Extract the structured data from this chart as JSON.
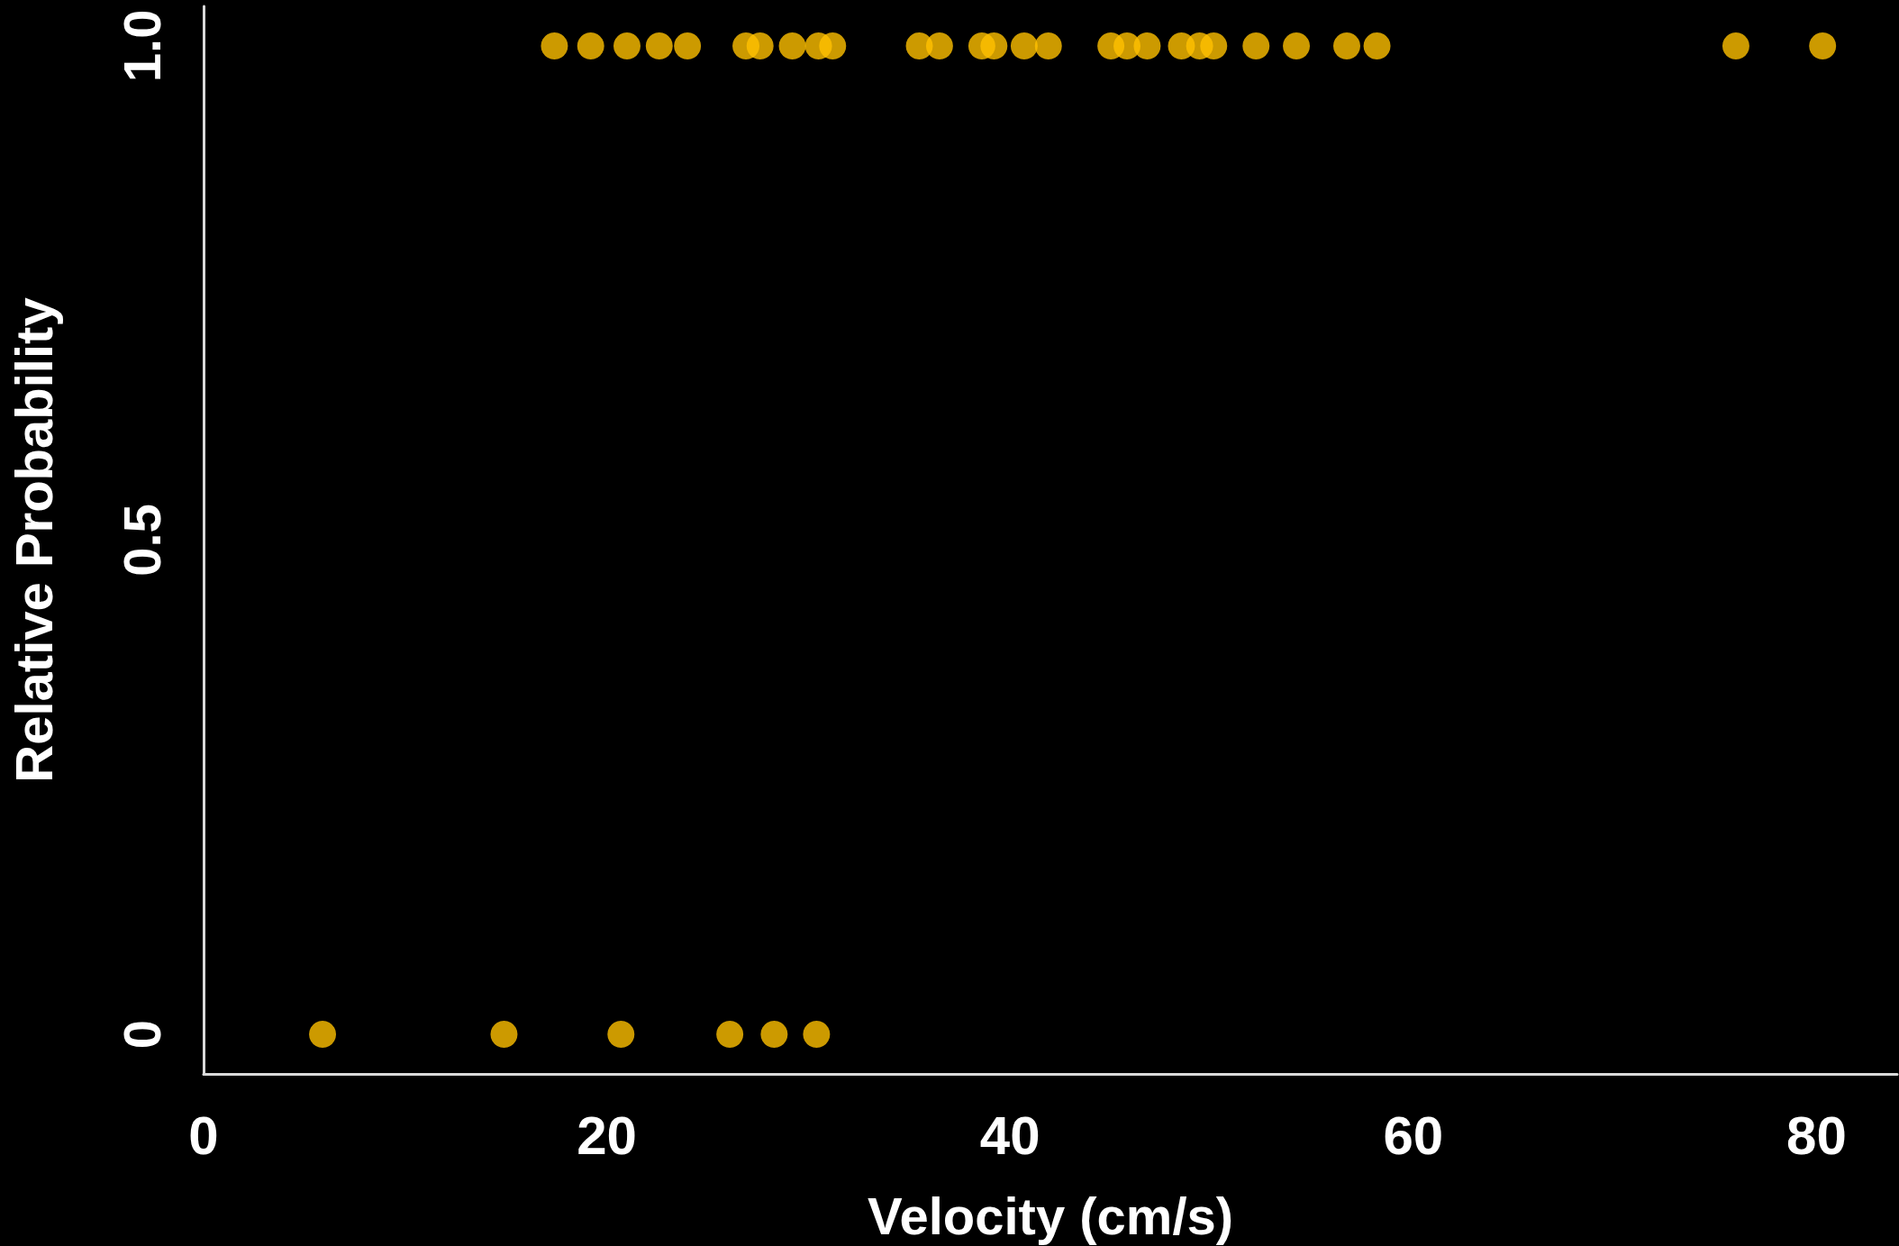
{
  "chart_data": {
    "type": "scatter",
    "xlabel": "Velocity (cm/s)",
    "ylabel": "Relative Probability",
    "series": [
      {
        "color": "#ffc000",
        "x": [
          17.4,
          19.2,
          21.0,
          22.6,
          24.0,
          26.9,
          27.6,
          29.2,
          30.5,
          31.2,
          35.5,
          36.5,
          38.6,
          39.2,
          40.7,
          41.9,
          45.0,
          45.8,
          46.8,
          48.5,
          49.4,
          50.1,
          52.2,
          54.2,
          56.7,
          58.2,
          76.0,
          80.3
        ],
        "values": [
          1,
          1,
          1,
          1,
          1,
          1,
          1,
          1,
          1,
          1,
          1,
          1,
          1,
          1,
          1,
          1,
          1,
          1,
          1,
          1,
          1,
          1,
          1,
          1,
          1,
          1,
          1,
          1
        ]
      },
      {
        "color": "#ffc000",
        "x": [
          5.9,
          14.9,
          20.7,
          26.1,
          28.3,
          30.4
        ],
        "values": [
          0,
          0,
          0,
          0,
          0,
          0
        ]
      }
    ],
    "xlim": [
      0,
      84
    ],
    "xticks": [
      0,
      20,
      40,
      60,
      80
    ],
    "ylim": [
      -0.04,
      1.04
    ],
    "yticks": [
      0,
      {
        "value": 0.5,
        "label": "0.5"
      },
      {
        "value": 1,
        "label": "1.0"
      }
    ],
    "grid": false,
    "marker": "circle"
  }
}
